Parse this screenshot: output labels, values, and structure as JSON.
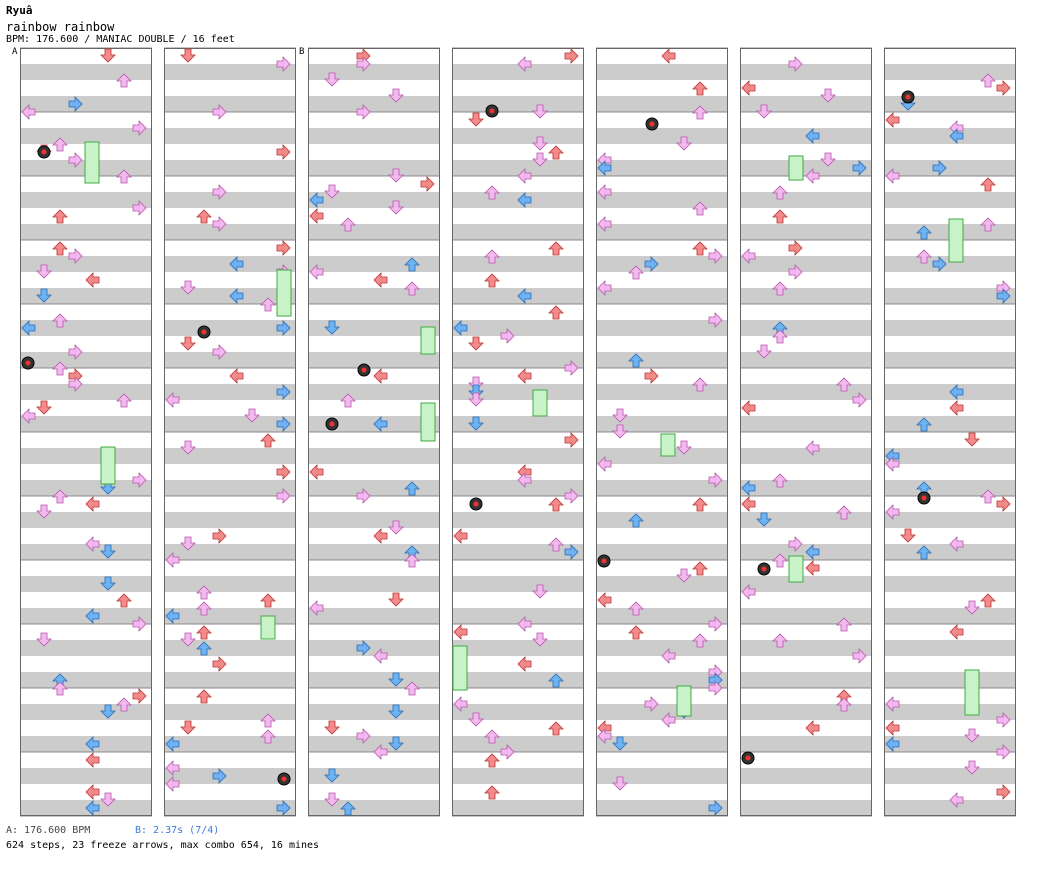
{
  "header": {
    "artist": "Ryuâ",
    "title": "rainbow rainbow",
    "info": "BPM: 176.600 / MANIAC DOUBLE / 16 feet"
  },
  "markers": {
    "a": "A",
    "b": "B"
  },
  "footer": {
    "bpm_a": "A: 176.600 BPM",
    "bpm_b": "B: 2.37s (7/4)",
    "stats": "624 steps, 23 freeze arrows, max combo 654, 16 mines"
  },
  "colors": {
    "stripe": "#cccccc",
    "measure_line": "#888888",
    "column_border": "#666666",
    "arrow_red": "#f58a8a",
    "arrow_blue": "#6fb2f2",
    "arrow_pink": "#f4b8f0",
    "freeze": "#c8f2c8",
    "mine": "#333333"
  }
}
